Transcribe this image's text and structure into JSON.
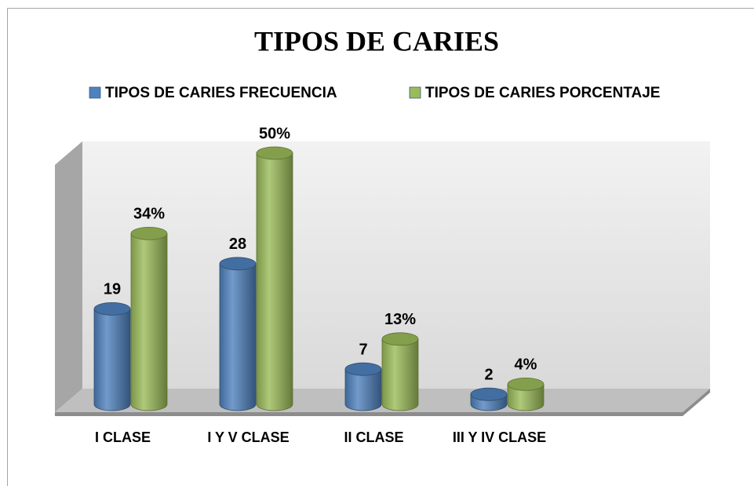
{
  "chart_data": {
    "type": "bar3d",
    "title": "TIPOS DE CARIES",
    "categories": [
      "I CLASE",
      "I Y V CLASE",
      "II CLASE",
      "III Y IV CLASE"
    ],
    "series": [
      {
        "name": "TIPOS DE CARIES FRECUENCIA",
        "color": "#4f81bd",
        "values": [
          19,
          28,
          7,
          2
        ]
      },
      {
        "name": "TIPOS DE CARIES PORCENTAJE",
        "color": "#9bbb59",
        "values": [
          34,
          50,
          13,
          4
        ],
        "value_labels": [
          "34%",
          "50%",
          "13%",
          "4%"
        ]
      }
    ],
    "legend": "top"
  }
}
